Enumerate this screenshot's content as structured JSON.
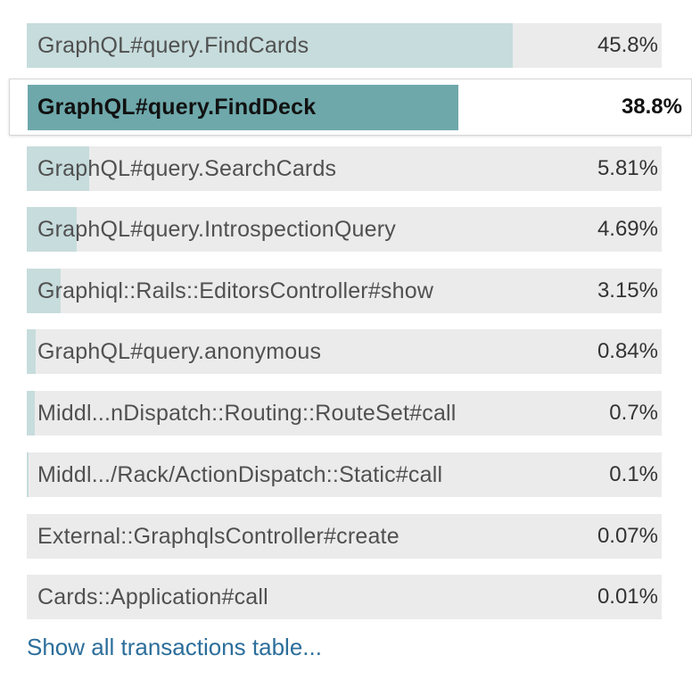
{
  "transactions": [
    {
      "name": "GraphQL#query.FindCards",
      "percent_label": "45.8%",
      "share": 0.765
    },
    {
      "name": "GraphQL#query.FindDeck",
      "percent_label": "38.8%",
      "share": 0.648,
      "selected": true
    },
    {
      "name": "GraphQL#query.SearchCards",
      "percent_label": "5.81%",
      "share": 0.098
    },
    {
      "name": "GraphQL#query.IntrospectionQuery",
      "percent_label": "4.69%",
      "share": 0.079
    },
    {
      "name": "Graphiql::Rails::EditorsController#show",
      "percent_label": "3.15%",
      "share": 0.053
    },
    {
      "name": "GraphQL#query.anonymous",
      "percent_label": "0.84%",
      "share": 0.014
    },
    {
      "name": "Middl...nDispatch::Routing::RouteSet#call",
      "percent_label": "0.7%",
      "share": 0.012
    },
    {
      "name": "Middl.../Rack/ActionDispatch::Static#call",
      "percent_label": "0.1%",
      "share": 0.003
    },
    {
      "name": "External::GraphqlsController#create",
      "percent_label": "0.07%",
      "share": 0.0
    },
    {
      "name": "Cards::Application#call",
      "percent_label": "0.01%",
      "share": 0.0
    }
  ],
  "show_all_link": "Show all transactions table..."
}
